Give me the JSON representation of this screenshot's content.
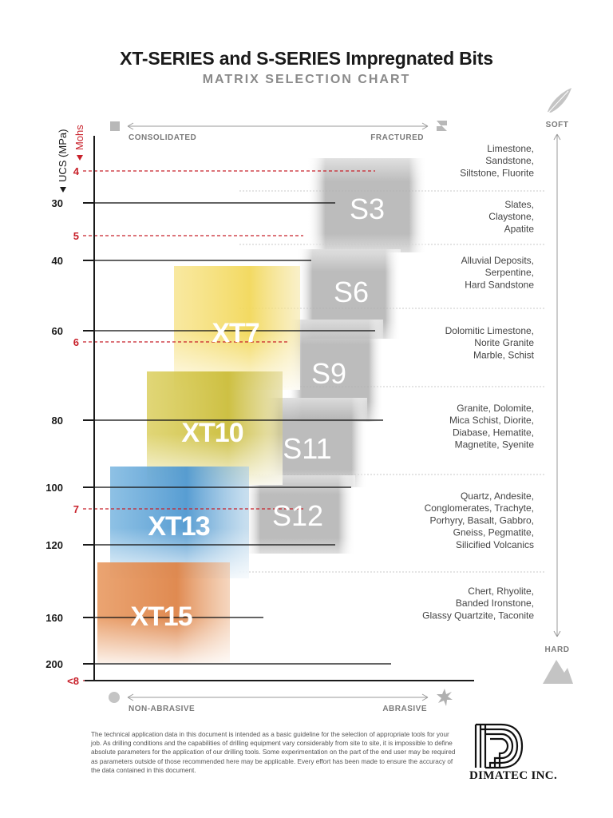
{
  "title": "XT-SERIES and S-SERIES Impregnated Bits",
  "subtitle": "MATRIX SELECTION CHART",
  "chart_data": {
    "type": "range",
    "ucs_axis_label": "UCS (MPa)",
    "mohs_axis_label": "Mohs",
    "ucs_ticks": [
      30,
      40,
      60,
      80,
      100,
      120,
      160,
      200
    ],
    "mohs_ticks": [
      "4",
      "5",
      "6",
      "7",
      "<8"
    ],
    "top_axis": {
      "left": "CONSOLIDATED",
      "right": "FRACTURED"
    },
    "bottom_axis": {
      "left": "NON-ABRASIVE",
      "right": "ABRASIVE"
    },
    "right_axis": {
      "top": "SOFT",
      "bottom": "HARD"
    },
    "s_series": [
      {
        "name": "S3",
        "formation_groups": [
          1,
          2
        ]
      },
      {
        "name": "S6",
        "formation_groups": [
          3
        ]
      },
      {
        "name": "S9",
        "formation_groups": [
          4
        ]
      },
      {
        "name": "S11",
        "formation_groups": [
          5
        ]
      },
      {
        "name": "S12",
        "formation_groups": [
          6
        ]
      }
    ],
    "xt_series": [
      {
        "name": "XT7",
        "color": "#f2d85a"
      },
      {
        "name": "XT10",
        "color": "#d2c440"
      },
      {
        "name": "XT13",
        "color": "#5aa2d6"
      },
      {
        "name": "XT15",
        "color": "#e08a50"
      }
    ],
    "formations": [
      {
        "lines": [
          "Limestone,",
          "Sandstone,",
          "Siltstone, Fluorite"
        ]
      },
      {
        "lines": [
          "Slates,",
          "Claystone,",
          "Apatite"
        ]
      },
      {
        "lines": [
          "Alluvial Deposits,",
          "Serpentine,",
          "Hard Sandstone"
        ]
      },
      {
        "lines": [
          "Dolomitic Limestone,",
          "Norite Granite",
          "Marble, Schist"
        ]
      },
      {
        "lines": [
          "Granite, Dolomite,",
          "Mica Schist, Diorite,",
          "Diabase, Hematite,",
          "Magnetite, Syenite"
        ]
      },
      {
        "lines": [
          "Quartz, Andesite,",
          "Conglomerates, Trachyte,",
          "Porhyry, Basalt, Gabbro,",
          "Gneiss, Pegmatite,",
          "Silicified Volcanics"
        ]
      },
      {
        "lines": [
          "Chert, Rhyolite,",
          "Banded Ironstone,",
          "Glassy Quartzite, Taconite"
        ]
      }
    ]
  },
  "disclaimer": "The technical application data in this document is intended as a basic guideline for the selection of appropriate tools for your job. As drilling conditions and the capabilities of drilling equipment vary considerably from site to site, it is impossible to define absolute parameters for the application of our drilling tools. Some experimentation on the part of the end user may be required as parameters outside of those recommended here may be applicable. Every effort has been made to ensure the accuracy of the data contained in this document.",
  "logo_text": "DIMATEC INC.",
  "colors": {
    "mohs_red": "#c8202a",
    "gray_bar": "#b4b4b4",
    "axis": "#1a1a1a",
    "label_gray": "#7a7a7a"
  },
  "icons": [
    "square-icon",
    "fractured-rock-icon",
    "feather-icon",
    "mountain-icon",
    "circle-icon",
    "starburst-icon"
  ]
}
